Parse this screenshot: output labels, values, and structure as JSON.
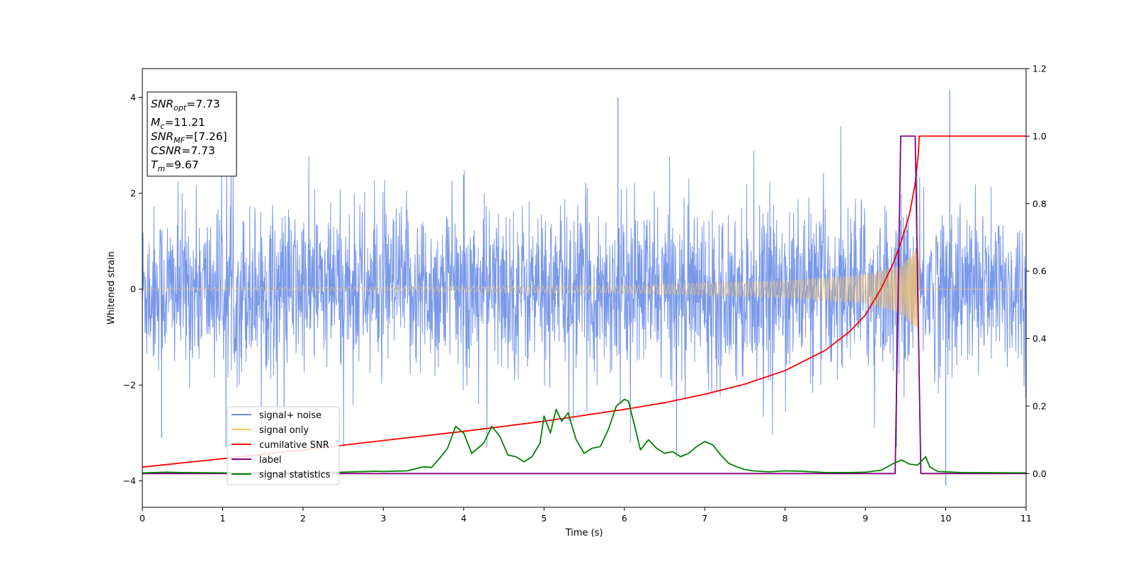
{
  "chart_data": {
    "type": "line",
    "xlabel": "Time (s)",
    "ylabel": "Whitened strain",
    "xlim": [
      0,
      11
    ],
    "ylim": [
      -4.55,
      4.6
    ],
    "y2lim": [
      -0.1,
      1.2
    ],
    "x_ticks": [
      "0",
      "1",
      "2",
      "3",
      "4",
      "5",
      "6",
      "7",
      "8",
      "9",
      "10",
      "11"
    ],
    "y_ticks": [
      "−4",
      "−2",
      "0",
      "2",
      "4"
    ],
    "y2_ticks": [
      "0.0",
      "0.2",
      "0.4",
      "0.6",
      "0.8",
      "1.0",
      "1.2"
    ],
    "y_tick_values": [
      -4,
      -2,
      0,
      2,
      4
    ],
    "y2_tick_values": [
      0,
      0.2,
      0.4,
      0.6,
      0.8,
      1.0,
      1.2
    ],
    "info_box": {
      "snr_opt": {
        "base": "SNR",
        "sub": "opt",
        "value": "=7.73"
      },
      "mc": {
        "base": "M",
        "sub": "c",
        "value": "=11.21"
      },
      "snr_mf": {
        "base": "SNR",
        "sub": "MF",
        "value": "=[7.26]"
      },
      "csnr": {
        "base": "CSNR",
        "value": "=7.73"
      },
      "tm": {
        "base": "T",
        "sub": "m",
        "value": "=9.67"
      }
    },
    "legend": {
      "position": "lower-left",
      "entries": [
        {
          "label": "signal+ noise",
          "color": "#6a8de8"
        },
        {
          "label": "signal only",
          "color": "#f5c36b"
        },
        {
          "label": "cumilative SNR",
          "color": "#ff0000"
        },
        {
          "label": "label",
          "color": "#800080"
        },
        {
          "label": "signal statistics",
          "color": "#008000"
        }
      ]
    },
    "series": [
      {
        "name": "signal+ noise",
        "axis": "left",
        "color": "#6a8de8",
        "kind": "noise",
        "x_range": [
          0,
          11
        ],
        "envelope": [
          -2.2,
          2.2
        ],
        "peaks": [
          [
            5.92,
            4.0
          ],
          [
            10.05,
            4.15
          ],
          [
            6.65,
            -3.5
          ],
          [
            10.0,
            -4.1
          ],
          [
            0.24,
            -3.1
          ]
        ]
      },
      {
        "name": "signal only",
        "axis": "left",
        "color": "#f5c36b",
        "kind": "chirp",
        "merger_time": 9.67,
        "amplitude_envelope": [
          [
            0,
            0.02
          ],
          [
            6,
            0.08
          ],
          [
            8,
            0.18
          ],
          [
            9,
            0.3
          ],
          [
            9.45,
            0.5
          ],
          [
            9.67,
            0.9
          ]
        ]
      },
      {
        "name": "cumilative SNR",
        "axis": "right",
        "color": "#ff0000",
        "x": [
          0,
          1,
          2,
          3,
          4,
          5,
          6,
          6.5,
          7,
          7.5,
          8,
          8.5,
          8.8,
          9.0,
          9.2,
          9.35,
          9.45,
          9.55,
          9.62,
          9.66,
          9.67,
          11
        ],
        "y": [
          0.019,
          0.044,
          0.07,
          0.098,
          0.125,
          0.155,
          0.19,
          0.21,
          0.235,
          0.265,
          0.305,
          0.365,
          0.42,
          0.47,
          0.55,
          0.625,
          0.69,
          0.77,
          0.86,
          0.95,
          1.0,
          1.0
        ]
      },
      {
        "name": "label",
        "axis": "right",
        "color": "#800080",
        "x": [
          0,
          9.37,
          9.44,
          9.62,
          9.69,
          11
        ],
        "y": [
          0,
          0,
          1,
          1,
          0,
          0
        ]
      },
      {
        "name": "signal statistics",
        "axis": "right",
        "color": "#008000",
        "x": [
          0,
          0.3,
          0.5,
          1,
          2,
          2.5,
          2.9,
          3.0,
          3.3,
          3.5,
          3.6,
          3.7,
          3.8,
          3.9,
          4.0,
          4.1,
          4.25,
          4.35,
          4.45,
          4.55,
          4.65,
          4.75,
          4.85,
          4.95,
          5.0,
          5.08,
          5.15,
          5.22,
          5.3,
          5.4,
          5.5,
          5.6,
          5.7,
          5.8,
          5.9,
          6.0,
          6.05,
          6.15,
          6.2,
          6.3,
          6.4,
          6.5,
          6.6,
          6.7,
          6.8,
          6.9,
          7.0,
          7.1,
          7.2,
          7.3,
          7.4,
          7.5,
          7.6,
          7.8,
          8.0,
          8.2,
          8.5,
          8.8,
          9.0,
          9.2,
          9.35,
          9.45,
          9.55,
          9.65,
          9.75,
          9.8,
          9.9,
          10.2,
          11
        ],
        "y": [
          0.002,
          0.004,
          0.003,
          0.002,
          0.003,
          0.004,
          0.007,
          0.006,
          0.008,
          0.02,
          0.018,
          0.045,
          0.075,
          0.14,
          0.12,
          0.06,
          0.09,
          0.14,
          0.11,
          0.055,
          0.05,
          0.035,
          0.05,
          0.09,
          0.17,
          0.12,
          0.19,
          0.155,
          0.18,
          0.1,
          0.06,
          0.075,
          0.08,
          0.13,
          0.2,
          0.22,
          0.215,
          0.12,
          0.07,
          0.1,
          0.075,
          0.06,
          0.065,
          0.05,
          0.06,
          0.08,
          0.095,
          0.085,
          0.055,
          0.03,
          0.02,
          0.012,
          0.008,
          0.005,
          0.008,
          0.007,
          0.003,
          0.003,
          0.004,
          0.01,
          0.03,
          0.04,
          0.028,
          0.025,
          0.05,
          0.02,
          0.006,
          0.003,
          0.002
        ]
      }
    ]
  }
}
